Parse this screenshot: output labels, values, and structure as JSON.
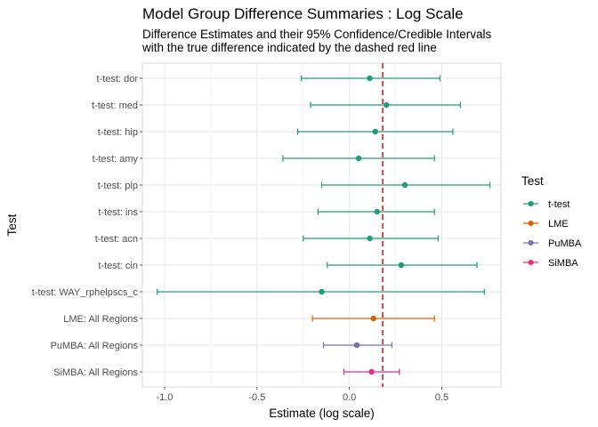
{
  "chart_data": {
    "type": "forest",
    "title": "Model Group Difference Summaries : Log Scale",
    "subtitle_lines": [
      "Difference Estimates and their 95% Confidence/Credible Intervals",
      "with the true difference indicated by the dashed red line"
    ],
    "xlabel": "Estimate (log scale)",
    "ylabel": "Test",
    "xlim": [
      -1.12,
      0.82
    ],
    "x_ticks": [
      {
        "value": -1.0,
        "label": "-1.0"
      },
      {
        "value": -0.5,
        "label": "-0.5"
      },
      {
        "value": 0.0,
        "label": "0.0"
      },
      {
        "value": 0.5,
        "label": "0.5"
      }
    ],
    "reference_line": {
      "value": 0.18,
      "color": "#e41a1c",
      "style": "dashed"
    },
    "grid": true,
    "legend": {
      "title": "Test",
      "placement": "right",
      "entries": [
        {
          "label": "t-test",
          "color": "#1b9e77"
        },
        {
          "label": "LME",
          "color": "#d95f02"
        },
        {
          "label": "PuMBA",
          "color": "#7570b3"
        },
        {
          "label": "SiMBA",
          "color": "#e7298a"
        }
      ]
    },
    "rows": [
      {
        "label": "t-test: dor",
        "group": "t-test",
        "estimate": 0.11,
        "lower": -0.26,
        "upper": 0.49
      },
      {
        "label": "t-test: med",
        "group": "t-test",
        "estimate": 0.2,
        "lower": -0.21,
        "upper": 0.6
      },
      {
        "label": "t-test: hip",
        "group": "t-test",
        "estimate": 0.14,
        "lower": -0.28,
        "upper": 0.56
      },
      {
        "label": "t-test: amy",
        "group": "t-test",
        "estimate": 0.05,
        "lower": -0.36,
        "upper": 0.46
      },
      {
        "label": "t-test: pip",
        "group": "t-test",
        "estimate": 0.3,
        "lower": -0.15,
        "upper": 0.76
      },
      {
        "label": "t-test: ins",
        "group": "t-test",
        "estimate": 0.15,
        "lower": -0.17,
        "upper": 0.46
      },
      {
        "label": "t-test: acn",
        "group": "t-test",
        "estimate": 0.11,
        "lower": -0.25,
        "upper": 0.48
      },
      {
        "label": "t-test: cin",
        "group": "t-test",
        "estimate": 0.28,
        "lower": -0.12,
        "upper": 0.69
      },
      {
        "label": "t-test: WAY_rphelpscs_c",
        "group": "t-test",
        "estimate": -0.15,
        "lower": -1.04,
        "upper": 0.73
      },
      {
        "label": "LME: All Regions",
        "group": "LME",
        "estimate": 0.13,
        "lower": -0.2,
        "upper": 0.46
      },
      {
        "label": "PuMBA: All Regions",
        "group": "PuMBA",
        "estimate": 0.04,
        "lower": -0.14,
        "upper": 0.23
      },
      {
        "label": "SiMBA: All Regions",
        "group": "SiMBA",
        "estimate": 0.12,
        "lower": -0.03,
        "upper": 0.27
      }
    ]
  }
}
